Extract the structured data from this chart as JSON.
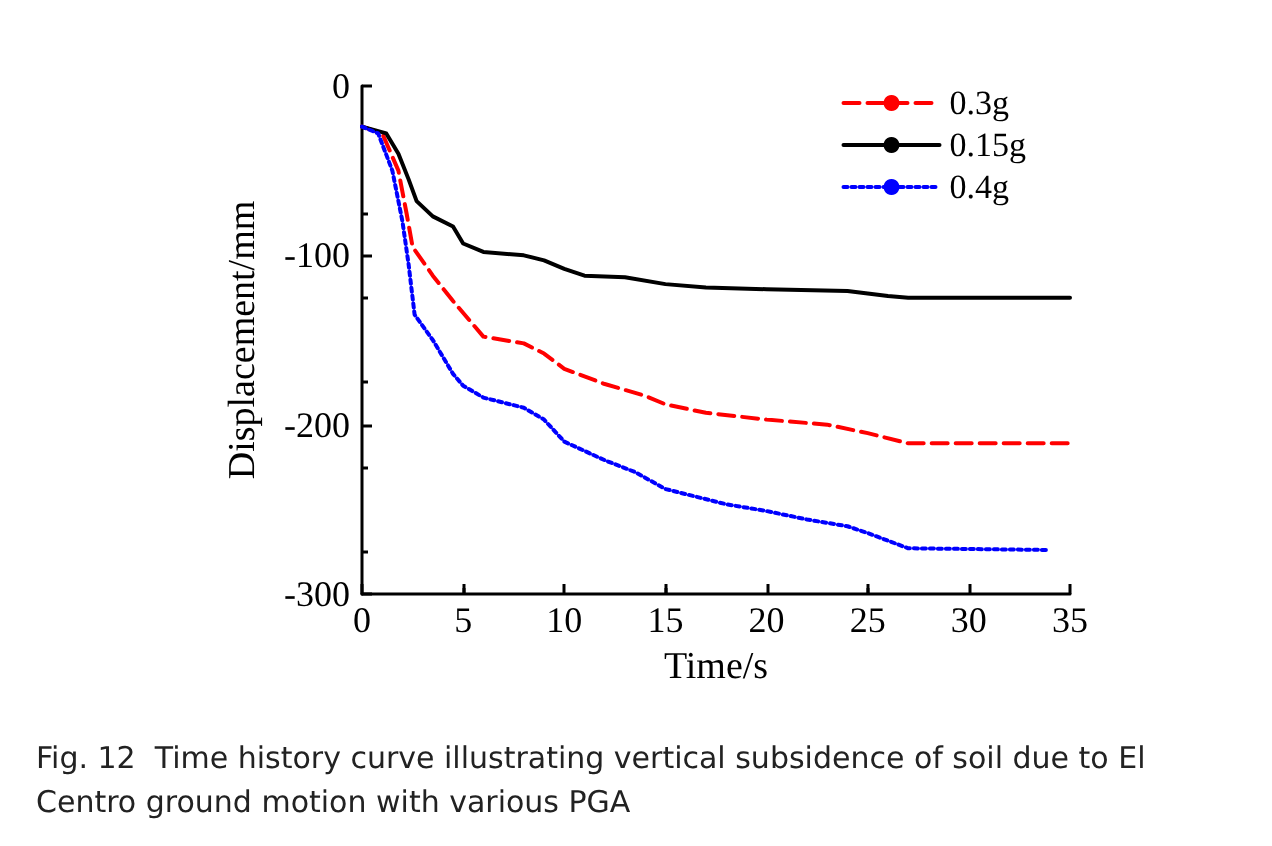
{
  "chart_data": {
    "type": "line",
    "xlabel": "Time/s",
    "ylabel": "Displacement/mm",
    "xlim": [
      0,
      35
    ],
    "xticks": [
      0,
      5,
      10,
      15,
      20,
      25,
      30,
      35
    ],
    "ylim": [
      -300,
      0
    ],
    "yticks": [
      -300,
      -200,
      -100,
      0
    ],
    "grid": false,
    "legend": "top right",
    "marker": "none",
    "annotations": [
      "Fig. 12  Time history curve illustrating vertical subsidence of soil due to El Centro ground motion with various PGA"
    ],
    "series": [
      {
        "name": "0.3g",
        "color": "#ff0000",
        "line_style": "dashed",
        "x": [
          0,
          1,
          1.8,
          2.2,
          2.5,
          3.5,
          4.5,
          6,
          8,
          9,
          10,
          12,
          14,
          15,
          17,
          20,
          23,
          25,
          27,
          35
        ],
        "values": [
          -24,
          -28,
          -50,
          -75,
          -95,
          -112,
          -127,
          -148,
          -152,
          -158,
          -167,
          -176,
          -183,
          -188,
          -193,
          -197,
          -200,
          -205,
          -211,
          -211
        ]
      },
      {
        "name": "0.15g",
        "color": "#000000",
        "line_style": "solid",
        "x": [
          0,
          1.2,
          1.8,
          2.3,
          2.7,
          3.5,
          4.5,
          5,
          6,
          8,
          9,
          10,
          11,
          13,
          15,
          17,
          20,
          24,
          26,
          27,
          35
        ],
        "values": [
          -24,
          -28,
          -40,
          -55,
          -68,
          -77,
          -83,
          -93,
          -98,
          -100,
          -103,
          -108,
          -112,
          -113,
          -117,
          -119,
          -120,
          -121,
          -124,
          -125,
          -125
        ]
      },
      {
        "name": "0.4g",
        "color": "#0000ff",
        "line_style": "dotted",
        "x": [
          0,
          0.8,
          1.5,
          2,
          2.3,
          2.6,
          3.5,
          4.5,
          5,
          6,
          8,
          9,
          10,
          12,
          13.5,
          15,
          18,
          20,
          22,
          24,
          25,
          27,
          34
        ],
        "values": [
          -24,
          -28,
          -50,
          -80,
          -105,
          -135,
          -150,
          -170,
          -177,
          -184,
          -190,
          -197,
          -210,
          -221,
          -228,
          -238,
          -247,
          -251,
          -256,
          -260,
          -264,
          -273,
          -274
        ]
      }
    ]
  }
}
